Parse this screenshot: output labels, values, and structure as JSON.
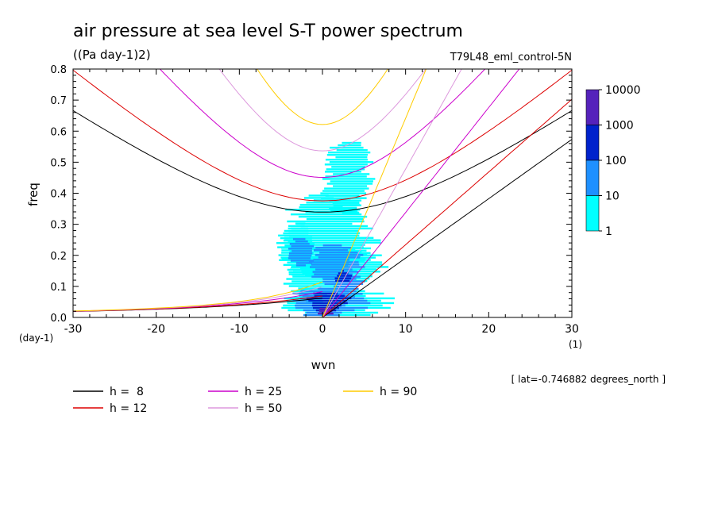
{
  "chart_data": {
    "type": "heatmap",
    "title": "air pressure at sea level S-T power spectrum",
    "subtitle": "((Pa day-1)2)",
    "run_label": "T79L48_eml_control-5N",
    "xlabel": "wvn",
    "ylabel": "freq",
    "x_unit": "(1)",
    "y_unit": "(day-1)",
    "xlim": [
      -30,
      30
    ],
    "ylim": [
      0,
      0.8
    ],
    "x_ticks": [
      "-30",
      "-20",
      "-10",
      "0",
      "10",
      "20",
      "30"
    ],
    "y_ticks": [
      "0.0",
      "0.1",
      "0.2",
      "0.3",
      "0.4",
      "0.5",
      "0.6",
      "0.7",
      "0.8"
    ],
    "footnote": "[ lat=-0.746882 degrees_north ]",
    "colorbar": {
      "levels": [
        "1",
        "10",
        "100",
        "1000",
        "10000"
      ],
      "colors": [
        "#00ffff",
        "#1e90ff",
        "#0022cc",
        "#5522bb"
      ]
    },
    "dispersion_curves": [
      {
        "name": "h =  8",
        "h": 8,
        "color": "#000000"
      },
      {
        "name": "h = 12",
        "h": 12,
        "color": "#dd0000"
      },
      {
        "name": "h = 25",
        "h": 25,
        "color": "#cc00cc"
      },
      {
        "name": "h = 50",
        "h": 50,
        "color": "#dd99dd"
      },
      {
        "name": "h = 90",
        "h": 90,
        "color": "#ffcc00"
      }
    ],
    "curve_families": [
      "kelvin",
      "inertia-gravity n=1",
      "mixed rossby-gravity (westward)"
    ],
    "power_regions": [
      {
        "level": 1,
        "blobs": [
          [
            -3,
            0.22,
            2,
            0.09
          ],
          [
            0.5,
            0.26,
            5,
            0.14
          ],
          [
            3,
            0.45,
            3,
            0.12
          ],
          [
            1.5,
            0.05,
            6,
            0.05
          ],
          [
            -1,
            0.12,
            3,
            0.08
          ],
          [
            4,
            0.17,
            3,
            0.06
          ]
        ]
      },
      {
        "level": 2,
        "blobs": [
          [
            1.5,
            0.17,
            3,
            0.07
          ],
          [
            -2.5,
            0.21,
            1.5,
            0.05
          ],
          [
            0.5,
            0.05,
            4,
            0.05
          ],
          [
            3,
            0.1,
            2,
            0.04
          ]
        ]
      },
      {
        "level": 3,
        "blobs": [
          [
            0.6,
            0.05,
            2.5,
            0.035
          ],
          [
            2.5,
            0.13,
            1,
            0.02
          ]
        ]
      },
      {
        "level": 4,
        "blobs": [
          [
            0.3,
            0.02,
            1,
            0.015
          ]
        ]
      }
    ]
  }
}
